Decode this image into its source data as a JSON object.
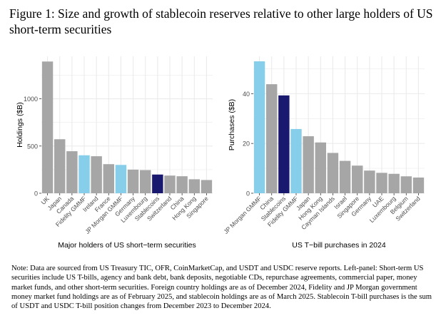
{
  "figure": {
    "title": "Figure 1: Size and growth of stablecoin reserves relative to other large holders of US short-term securities",
    "note": "Note: Data are sourced from US Treasury TIC, OFR, CoinMarketCap, and USDT and USDC reserve reports. Left-panel: Short-term US securities include US T-bills, agency and bank debt, bank deposits, negotiable CDs, repurchase agreements, commercial paper, money market funds, and other short-term securities. Foreign country holdings are as of December 2024, Fidelity and JP Morgan government money market fund holdings are as of February 2025, and stablecoin holdings are as of March 2025. Stablecoin T-bill purchases is the sum of USDT and USDC T-bill position changes from December 2023 to December 2024."
  },
  "colors": {
    "gray": "#a6a6a6",
    "light_blue": "#87ceeb",
    "navy": "#191970",
    "grid": "#ebebeb"
  },
  "chart_data": [
    {
      "type": "bar",
      "title": "",
      "xlabel": "Major holders of US short−term securities",
      "ylabel": "Holdings ($B)",
      "ylim": [
        0,
        1450
      ],
      "yticks": [
        0,
        500,
        1000
      ],
      "ytick_labels": [
        "0",
        "500",
        "1000"
      ],
      "grid": true,
      "categories": [
        "UK",
        "Japan",
        "Canada",
        "Fidelity GMMF",
        "Ireland",
        "France",
        "JP Morgan GMMF",
        "Germany",
        "Luxembourg",
        "Stablecoins",
        "Switzerland",
        "China",
        "Hong Kong",
        "Singapore"
      ],
      "values": [
        1395,
        572,
        445,
        402,
        392,
        308,
        300,
        250,
        245,
        198,
        187,
        180,
        148,
        140
      ],
      "bar_colors": [
        "gray",
        "gray",
        "gray",
        "light_blue",
        "gray",
        "gray",
        "light_blue",
        "gray",
        "gray",
        "navy",
        "gray",
        "gray",
        "gray",
        "gray"
      ]
    },
    {
      "type": "bar",
      "title": "",
      "xlabel": "US T−bill purchases in 2024",
      "ylabel": "Purchases ($B)",
      "ylim": [
        0,
        55
      ],
      "yticks": [
        0,
        20,
        40
      ],
      "ytick_labels": [
        "0",
        "20",
        "40"
      ],
      "grid": true,
      "categories": [
        "JP Morgan GMMF",
        "China",
        "Stablecoins",
        "Fidelity GMMF",
        "Japan",
        "Hong Kong",
        "Cayman Islands",
        "Israel",
        "Singapore",
        "Germany",
        "UAE",
        "Luxembourg",
        "Belgium",
        "Switzerland"
      ],
      "values": [
        53.0,
        43.8,
        39.3,
        25.8,
        22.9,
        20.4,
        16.2,
        13.0,
        11.1,
        9.1,
        8.2,
        7.8,
        6.8,
        6.3
      ],
      "bar_colors": [
        "light_blue",
        "gray",
        "navy",
        "light_blue",
        "gray",
        "gray",
        "gray",
        "gray",
        "gray",
        "gray",
        "gray",
        "gray",
        "gray",
        "gray"
      ]
    }
  ]
}
